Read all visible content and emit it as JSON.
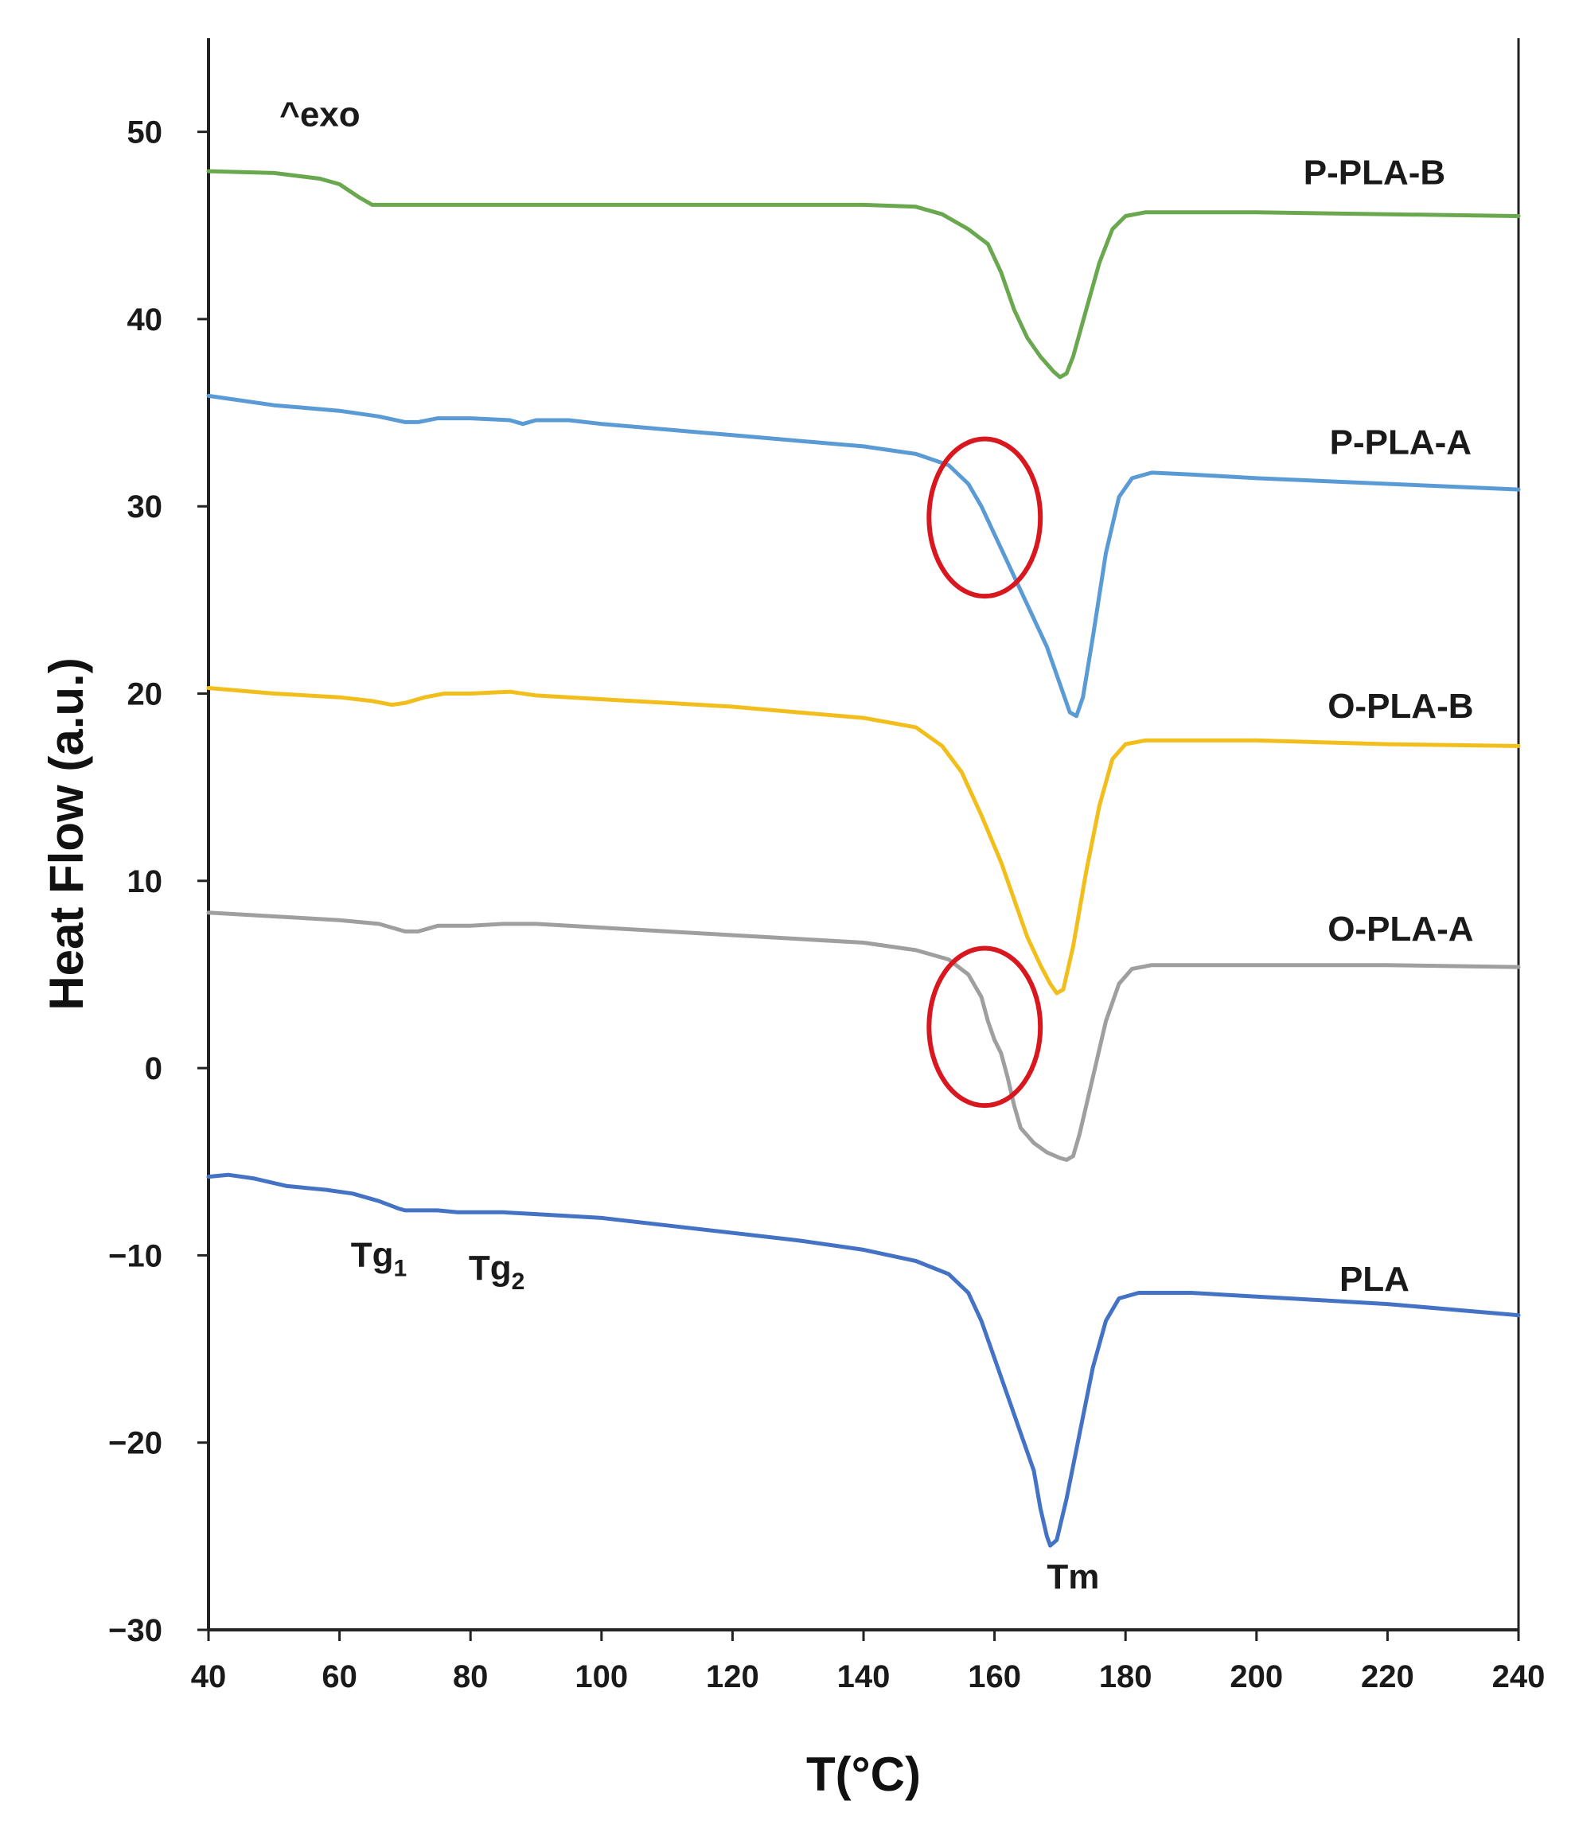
{
  "chart_data": {
    "type": "line",
    "title": "",
    "xlabel": "T(°C)",
    "ylabel": "Heat Flow (a.u.)",
    "xlim": [
      40,
      240
    ],
    "ylim": [
      -30,
      55
    ],
    "xticks": [
      40,
      60,
      80,
      100,
      120,
      140,
      160,
      180,
      200,
      220,
      240
    ],
    "yticks": [
      -30,
      -20,
      -10,
      0,
      10,
      20,
      30,
      40,
      50
    ],
    "ytick_labels": [
      "−30",
      "−20",
      "−10",
      "0",
      "10",
      "20",
      "30",
      "40",
      "50"
    ],
    "grid": false,
    "series": [
      {
        "name": "P-PLA-B",
        "color": "#6aa84f",
        "label_at": [
          218,
          47.2
        ],
        "points": [
          [
            40,
            47.9
          ],
          [
            50,
            47.8
          ],
          [
            57,
            47.5
          ],
          [
            60,
            47.2
          ],
          [
            63,
            46.5
          ],
          [
            65,
            46.1
          ],
          [
            70,
            46.1
          ],
          [
            80,
            46.1
          ],
          [
            100,
            46.1
          ],
          [
            120,
            46.1
          ],
          [
            140,
            46.1
          ],
          [
            148,
            46.0
          ],
          [
            152,
            45.6
          ],
          [
            156,
            44.8
          ],
          [
            159,
            44.0
          ],
          [
            161,
            42.5
          ],
          [
            163,
            40.5
          ],
          [
            165,
            39.0
          ],
          [
            167,
            38.0
          ],
          [
            169,
            37.2
          ],
          [
            170,
            36.9
          ],
          [
            171,
            37.1
          ],
          [
            172,
            38.0
          ],
          [
            174,
            40.5
          ],
          [
            176,
            43.0
          ],
          [
            178,
            44.8
          ],
          [
            180,
            45.5
          ],
          [
            183,
            45.7
          ],
          [
            190,
            45.7
          ],
          [
            200,
            45.7
          ],
          [
            220,
            45.6
          ],
          [
            240,
            45.5
          ]
        ]
      },
      {
        "name": "P-PLA-A",
        "color": "#5b9bd5",
        "label_at": [
          222,
          32.8
        ],
        "points": [
          [
            40,
            35.9
          ],
          [
            50,
            35.4
          ],
          [
            60,
            35.1
          ],
          [
            66,
            34.8
          ],
          [
            70,
            34.5
          ],
          [
            72,
            34.5
          ],
          [
            75,
            34.7
          ],
          [
            80,
            34.7
          ],
          [
            86,
            34.6
          ],
          [
            88,
            34.4
          ],
          [
            90,
            34.6
          ],
          [
            95,
            34.6
          ],
          [
            100,
            34.4
          ],
          [
            110,
            34.1
          ],
          [
            120,
            33.8
          ],
          [
            130,
            33.5
          ],
          [
            140,
            33.2
          ],
          [
            148,
            32.8
          ],
          [
            153,
            32.2
          ],
          [
            156,
            31.2
          ],
          [
            158,
            30.0
          ],
          [
            160,
            28.5
          ],
          [
            162,
            27.0
          ],
          [
            164,
            25.5
          ],
          [
            166,
            24.0
          ],
          [
            168,
            22.5
          ],
          [
            170,
            20.5
          ],
          [
            171.5,
            19.0
          ],
          [
            172.5,
            18.8
          ],
          [
            173.5,
            19.8
          ],
          [
            175,
            23.0
          ],
          [
            177,
            27.5
          ],
          [
            179,
            30.5
          ],
          [
            181,
            31.5
          ],
          [
            184,
            31.8
          ],
          [
            190,
            31.7
          ],
          [
            200,
            31.5
          ],
          [
            220,
            31.2
          ],
          [
            240,
            30.9
          ]
        ]
      },
      {
        "name": "O-PLA-B",
        "color": "#f2be1b",
        "label_at": [
          222,
          18.7
        ],
        "points": [
          [
            40,
            20.3
          ],
          [
            50,
            20.0
          ],
          [
            60,
            19.8
          ],
          [
            65,
            19.6
          ],
          [
            68,
            19.4
          ],
          [
            70,
            19.5
          ],
          [
            73,
            19.8
          ],
          [
            76,
            20.0
          ],
          [
            80,
            20.0
          ],
          [
            86,
            20.1
          ],
          [
            90,
            19.9
          ],
          [
            95,
            19.8
          ],
          [
            100,
            19.7
          ],
          [
            110,
            19.5
          ],
          [
            120,
            19.3
          ],
          [
            130,
            19.0
          ],
          [
            140,
            18.7
          ],
          [
            148,
            18.2
          ],
          [
            152,
            17.2
          ],
          [
            155,
            15.8
          ],
          [
            158,
            13.5
          ],
          [
            161,
            11.0
          ],
          [
            163,
            9.0
          ],
          [
            165,
            7.0
          ],
          [
            167,
            5.5
          ],
          [
            168.5,
            4.5
          ],
          [
            169.5,
            4.0
          ],
          [
            170.5,
            4.2
          ],
          [
            172,
            6.5
          ],
          [
            174,
            10.5
          ],
          [
            176,
            14.0
          ],
          [
            178,
            16.5
          ],
          [
            180,
            17.3
          ],
          [
            183,
            17.5
          ],
          [
            190,
            17.5
          ],
          [
            200,
            17.5
          ],
          [
            220,
            17.3
          ],
          [
            240,
            17.2
          ]
        ]
      },
      {
        "name": "O-PLA-A",
        "color": "#9f9f9f",
        "label_at": [
          222,
          6.8
        ],
        "points": [
          [
            40,
            8.3
          ],
          [
            50,
            8.1
          ],
          [
            60,
            7.9
          ],
          [
            66,
            7.7
          ],
          [
            70,
            7.3
          ],
          [
            72,
            7.3
          ],
          [
            75,
            7.6
          ],
          [
            80,
            7.6
          ],
          [
            85,
            7.7
          ],
          [
            90,
            7.7
          ],
          [
            100,
            7.5
          ],
          [
            110,
            7.3
          ],
          [
            120,
            7.1
          ],
          [
            130,
            6.9
          ],
          [
            140,
            6.7
          ],
          [
            148,
            6.3
          ],
          [
            153,
            5.8
          ],
          [
            156,
            5.0
          ],
          [
            158,
            3.8
          ],
          [
            159,
            2.5
          ],
          [
            160,
            1.5
          ],
          [
            161,
            0.8
          ],
          [
            162,
            -0.5
          ],
          [
            163,
            -2.0
          ],
          [
            164,
            -3.2
          ],
          [
            166,
            -4.0
          ],
          [
            168,
            -4.5
          ],
          [
            170,
            -4.8
          ],
          [
            171,
            -4.9
          ],
          [
            172,
            -4.7
          ],
          [
            173,
            -3.5
          ],
          [
            175,
            -0.5
          ],
          [
            177,
            2.5
          ],
          [
            179,
            4.5
          ],
          [
            181,
            5.3
          ],
          [
            184,
            5.5
          ],
          [
            190,
            5.5
          ],
          [
            200,
            5.5
          ],
          [
            220,
            5.5
          ],
          [
            240,
            5.4
          ]
        ]
      },
      {
        "name": "PLA",
        "color": "#4472c4",
        "label_at": [
          218,
          -11.9
        ],
        "points": [
          [
            40,
            -5.8
          ],
          [
            43,
            -5.7
          ],
          [
            47,
            -5.9
          ],
          [
            52,
            -6.3
          ],
          [
            58,
            -6.5
          ],
          [
            62,
            -6.7
          ],
          [
            66,
            -7.1
          ],
          [
            69,
            -7.5
          ],
          [
            70,
            -7.6
          ],
          [
            75,
            -7.6
          ],
          [
            78,
            -7.7
          ],
          [
            80,
            -7.7
          ],
          [
            85,
            -7.7
          ],
          [
            90,
            -7.8
          ],
          [
            95,
            -7.9
          ],
          [
            100,
            -8.0
          ],
          [
            110,
            -8.4
          ],
          [
            120,
            -8.8
          ],
          [
            130,
            -9.2
          ],
          [
            140,
            -9.7
          ],
          [
            148,
            -10.3
          ],
          [
            153,
            -11.0
          ],
          [
            156,
            -12.0
          ],
          [
            158,
            -13.5
          ],
          [
            160,
            -15.5
          ],
          [
            162,
            -17.5
          ],
          [
            164,
            -19.5
          ],
          [
            166,
            -21.5
          ],
          [
            167,
            -23.5
          ],
          [
            168,
            -25.0
          ],
          [
            168.5,
            -25.5
          ],
          [
            169.5,
            -25.2
          ],
          [
            171,
            -23.0
          ],
          [
            173,
            -19.5
          ],
          [
            175,
            -16.0
          ],
          [
            177,
            -13.5
          ],
          [
            179,
            -12.3
          ],
          [
            182,
            -12.0
          ],
          [
            190,
            -12.0
          ],
          [
            200,
            -12.2
          ],
          [
            205,
            -12.3
          ],
          [
            220,
            -12.6
          ],
          [
            240,
            -13.2
          ]
        ]
      }
    ],
    "annotations": [
      {
        "text": "^exo",
        "x": 57,
        "y": 50.3
      },
      {
        "text": "Tg",
        "sub": "1",
        "x": 66,
        "y": -10.6
      },
      {
        "text": "Tg",
        "sub": "2",
        "x": 84,
        "y": -11.3
      },
      {
        "text": "Tm",
        "x": 172,
        "y": -27.8
      }
    ],
    "highlights": [
      {
        "shape": "ellipse",
        "color": "#d9171f",
        "cx": 158.5,
        "cy": 29.4,
        "rx": 8.5,
        "ry": 4.2
      },
      {
        "shape": "ellipse",
        "color": "#d9171f",
        "cx": 158.5,
        "cy": 2.2,
        "rx": 8.5,
        "ry": 4.2
      }
    ]
  }
}
